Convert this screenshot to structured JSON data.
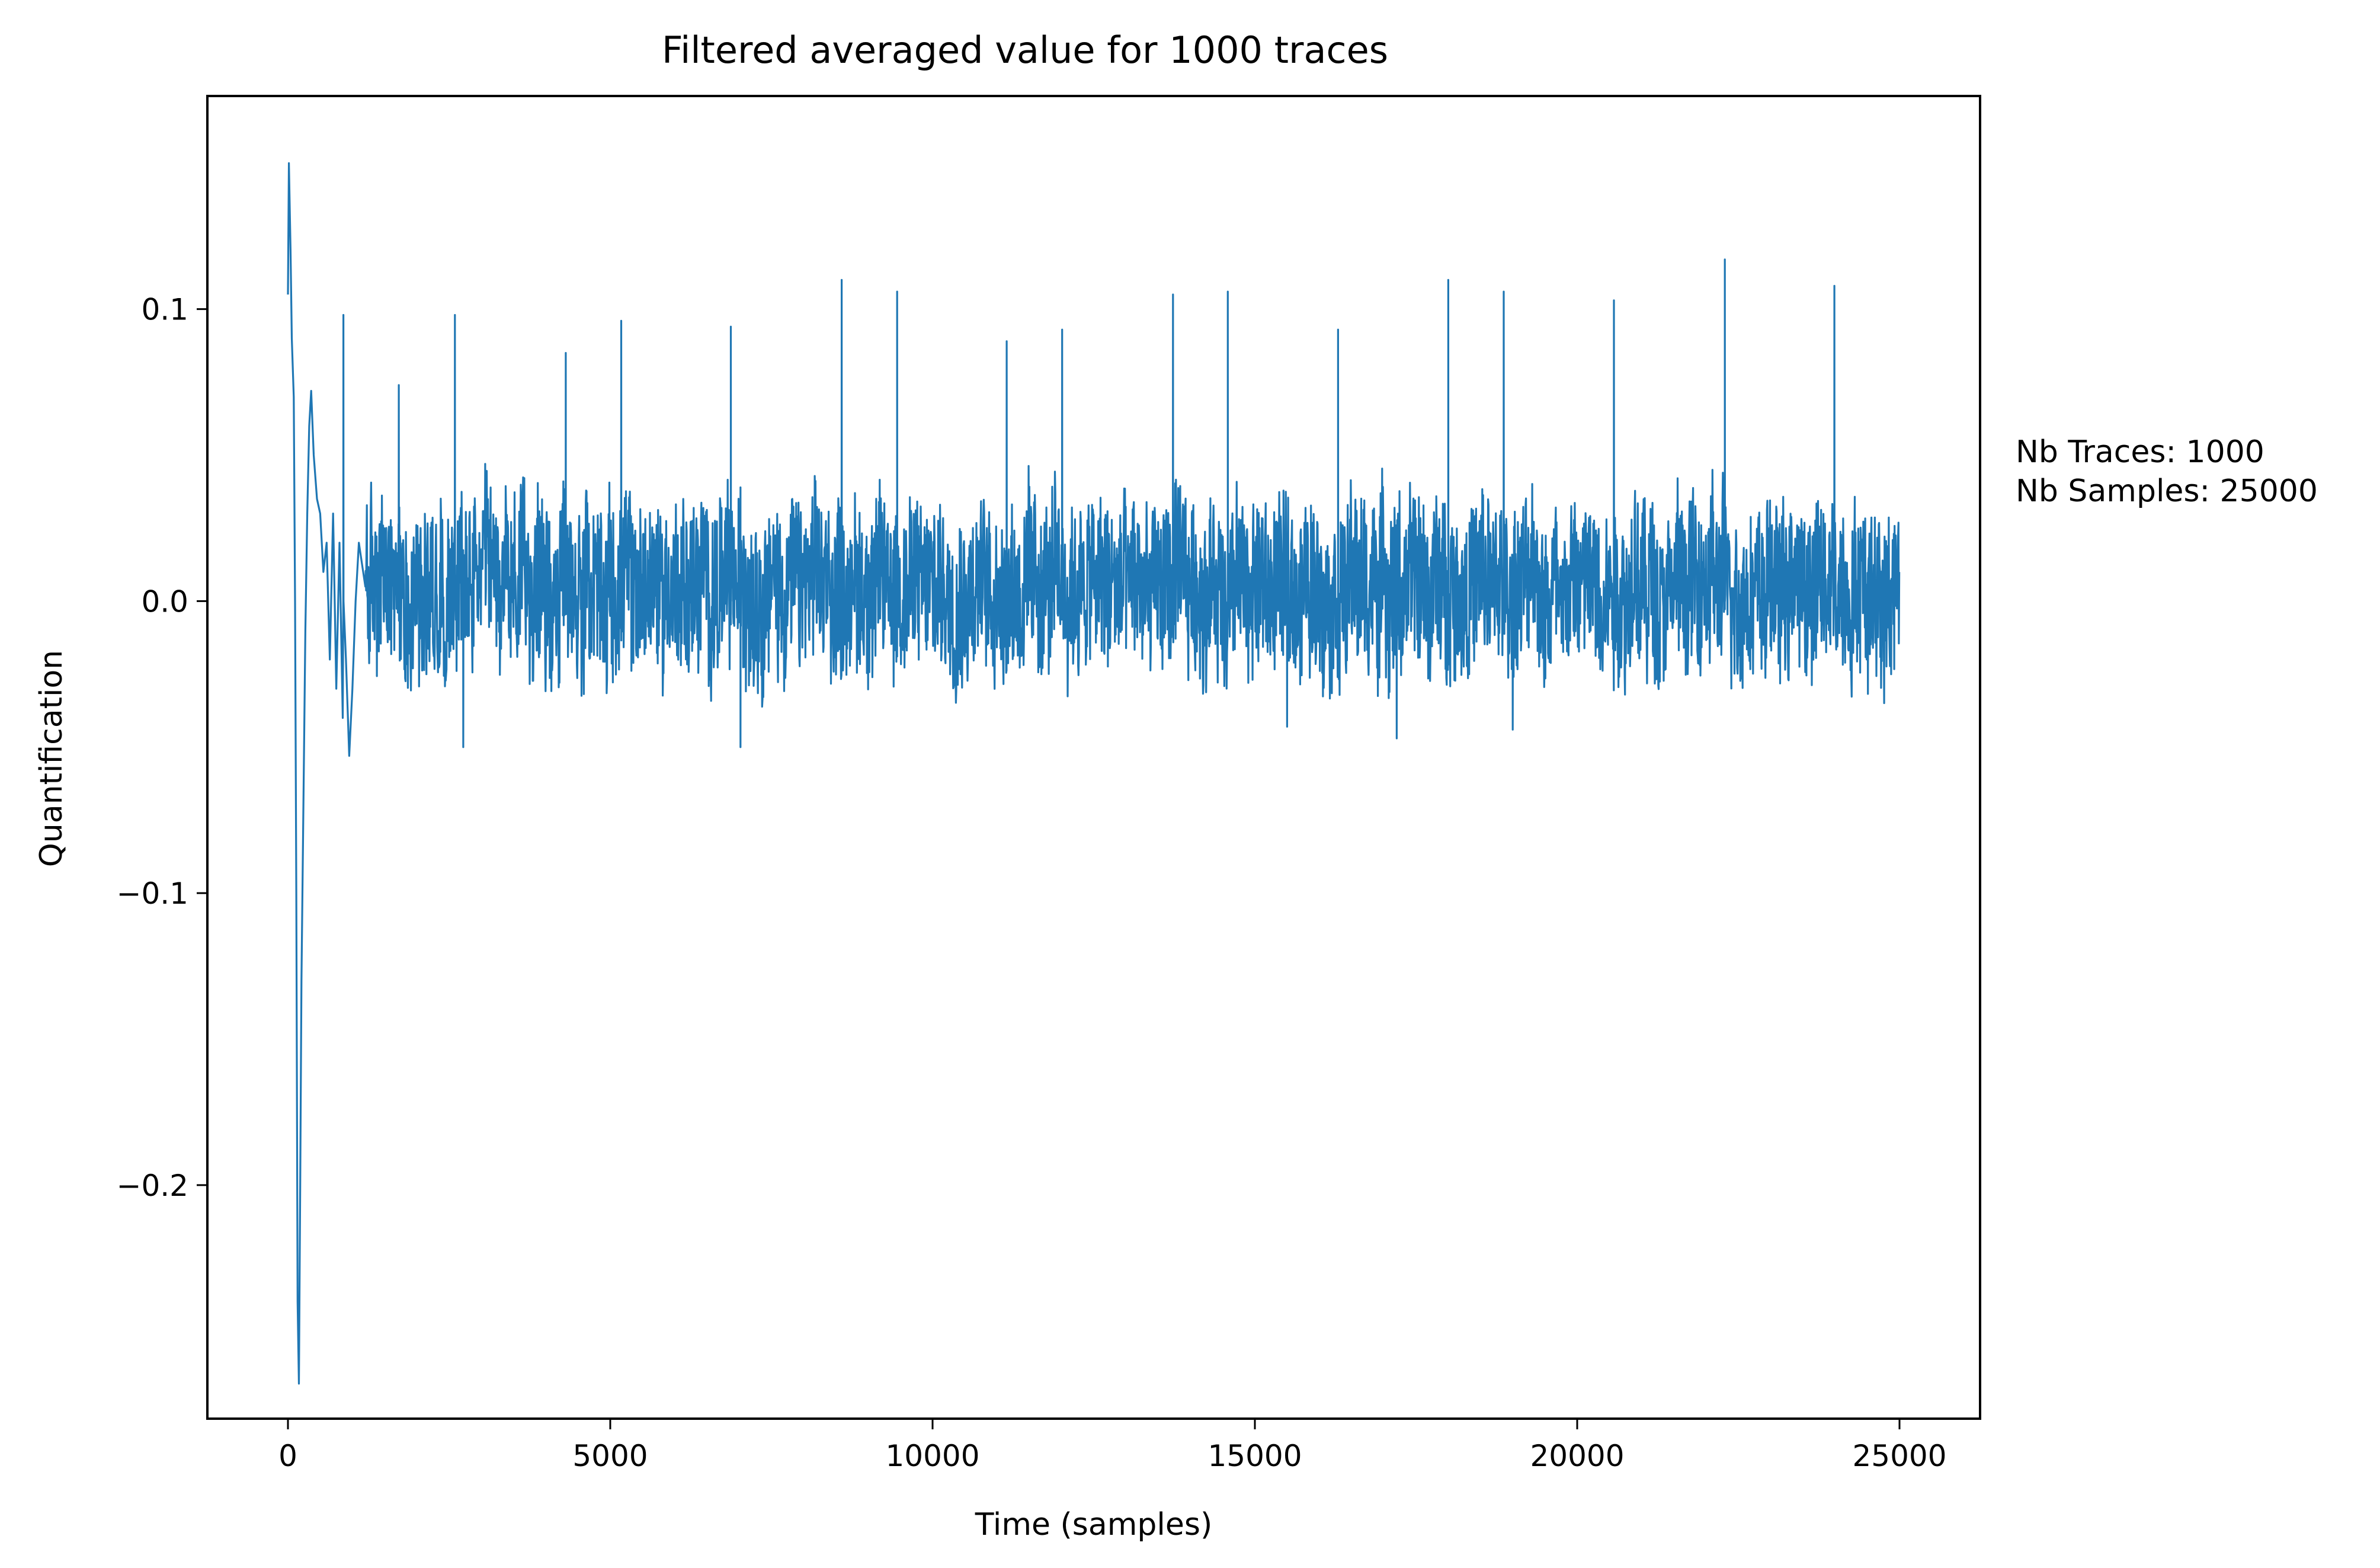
{
  "chart_data": {
    "type": "line",
    "title": "Filtered averaged value for 1000 traces",
    "xlabel": "Time (samples)",
    "ylabel": "Quantification",
    "xlim": [
      -1250,
      26250
    ],
    "ylim": [
      -0.28,
      0.173
    ],
    "x_ticks": [
      0,
      5000,
      10000,
      15000,
      20000,
      25000
    ],
    "x_tick_labels": [
      "0",
      "5000",
      "10000",
      "15000",
      "20000",
      "25000"
    ],
    "y_ticks": [
      0.1,
      0.0,
      -0.1,
      -0.2
    ],
    "y_tick_labels": [
      "0.1",
      "0.0",
      "−0.1",
      "−0.2"
    ],
    "grid": false,
    "annotation": {
      "lines": [
        "Nb Traces: 1000",
        "Nb Samples: 25000"
      ]
    },
    "series": [
      {
        "color": "#1f77b4",
        "n_samples": 25000,
        "noise_band": [
          -0.025,
          0.035
        ],
        "x": [
          0,
          15,
          40,
          60,
          90,
          110,
          130,
          150,
          170,
          190,
          210,
          240,
          270,
          300,
          330,
          360,
          400,
          450,
          500,
          550,
          600,
          650,
          700,
          750,
          800,
          850,
          900,
          950,
          1000,
          1050,
          1100,
          1200
        ],
        "y": [
          0.105,
          0.15,
          0.12,
          0.09,
          0.07,
          0.0,
          -0.1,
          -0.24,
          -0.268,
          -0.2,
          -0.13,
          -0.07,
          -0.01,
          0.03,
          0.06,
          0.072,
          0.05,
          0.035,
          0.03,
          0.01,
          0.02,
          -0.02,
          0.03,
          -0.03,
          0.02,
          -0.04,
          -0.02,
          -0.053,
          -0.03,
          0.0,
          0.02,
          0.005
        ],
        "spikes": [
          {
            "x": 860,
            "y": 0.098
          },
          {
            "x": 1720,
            "y": 0.074
          },
          {
            "x": 2590,
            "y": 0.098
          },
          {
            "x": 2720,
            "y": -0.05
          },
          {
            "x": 4310,
            "y": 0.085
          },
          {
            "x": 5170,
            "y": 0.096
          },
          {
            "x": 6870,
            "y": 0.094
          },
          {
            "x": 7020,
            "y": -0.05
          },
          {
            "x": 8590,
            "y": 0.11
          },
          {
            "x": 9450,
            "y": 0.106
          },
          {
            "x": 11150,
            "y": 0.089
          },
          {
            "x": 12010,
            "y": 0.093
          },
          {
            "x": 13730,
            "y": 0.105
          },
          {
            "x": 14580,
            "y": 0.106
          },
          {
            "x": 15500,
            "y": -0.043
          },
          {
            "x": 16290,
            "y": 0.093
          },
          {
            "x": 17200,
            "y": -0.047
          },
          {
            "x": 18000,
            "y": 0.11
          },
          {
            "x": 18860,
            "y": 0.106
          },
          {
            "x": 19000,
            "y": -0.044
          },
          {
            "x": 20570,
            "y": 0.103
          },
          {
            "x": 22290,
            "y": 0.117
          },
          {
            "x": 23990,
            "y": 0.108
          }
        ]
      }
    ]
  }
}
